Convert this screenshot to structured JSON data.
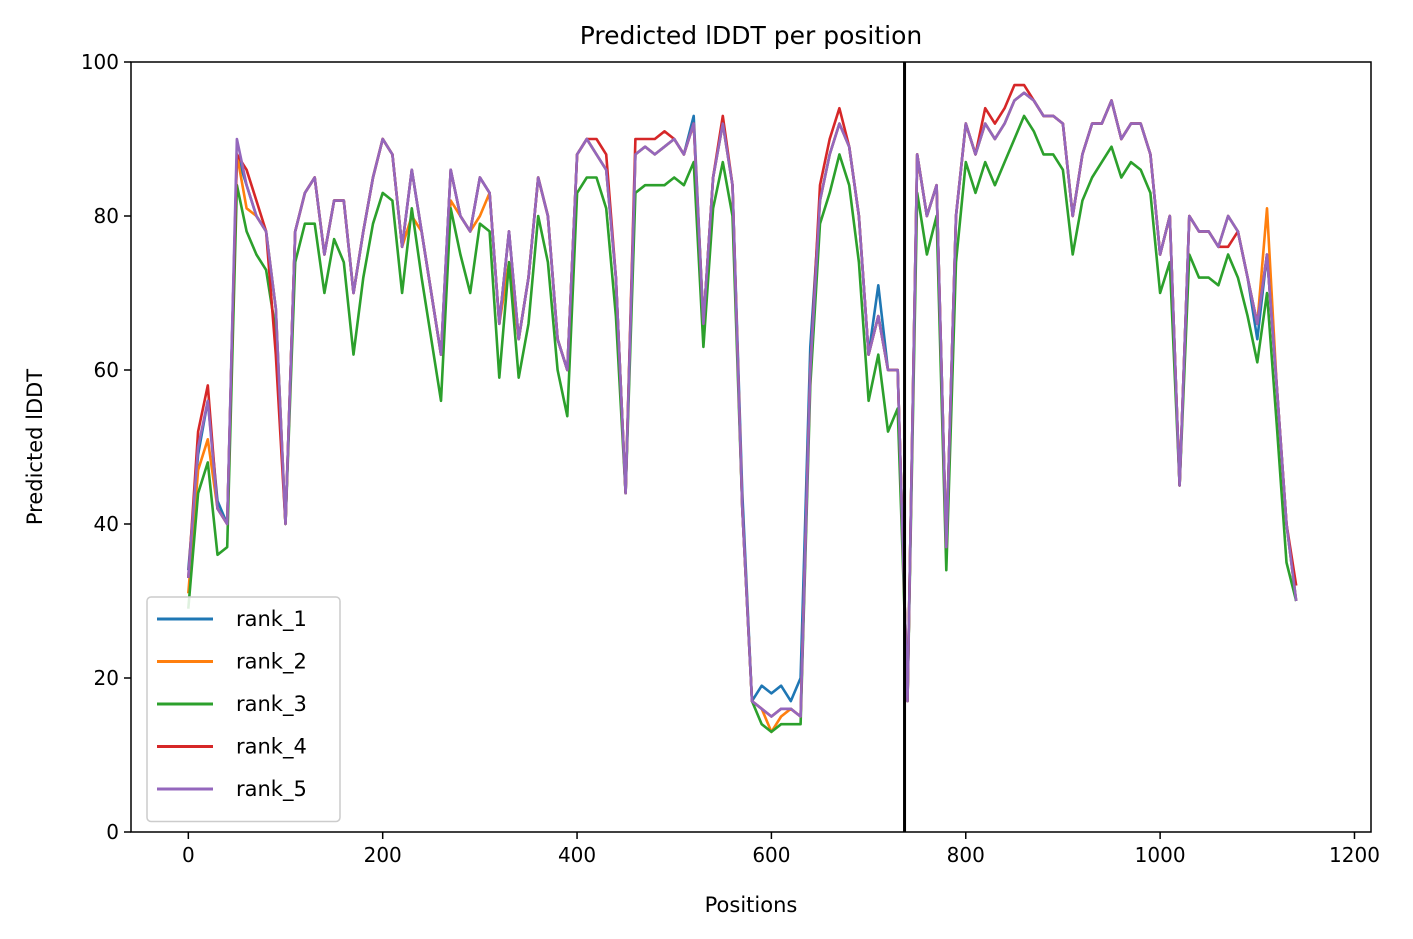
{
  "chart_data": {
    "type": "line",
    "title": "Predicted lDDT per position",
    "xlabel": "Positions",
    "ylabel": "Predicted lDDT",
    "xlim": [
      -59,
      1217
    ],
    "ylim": [
      0,
      100
    ],
    "xticks": [
      0,
      200,
      400,
      600,
      800,
      1000,
      1200
    ],
    "yticks": [
      0,
      20,
      40,
      60,
      80,
      100
    ],
    "grid": false,
    "legend_position": "lower-left",
    "vline": {
      "x": 737,
      "color": "#000000"
    },
    "x_step": 10,
    "series": [
      {
        "name": "rank_1",
        "color": "#1f77b4"
      },
      {
        "name": "rank_2",
        "color": "#ff7f0e"
      },
      {
        "name": "rank_3",
        "color": "#2ca02c"
      },
      {
        "name": "rank_4",
        "color": "#d62728"
      },
      {
        "name": "rank_5",
        "color": "#9467bd"
      }
    ],
    "base_values": [
      33,
      50,
      56,
      42,
      40,
      88,
      84,
      80,
      78,
      68,
      40,
      78,
      83,
      85,
      75,
      82,
      82,
      70,
      78,
      85,
      90,
      88,
      76,
      86,
      78,
      70,
      62,
      86,
      80,
      78,
      85,
      83,
      66,
      78,
      64,
      72,
      85,
      80,
      64,
      60,
      88,
      90,
      88,
      86,
      72,
      44,
      88,
      89,
      88,
      89,
      90,
      88,
      92,
      66,
      85,
      92,
      84,
      42,
      17,
      16,
      15,
      16,
      16,
      15,
      60,
      82,
      88,
      92,
      89,
      80,
      62,
      67,
      60,
      60,
      17,
      88,
      80,
      84,
      37,
      80,
      92,
      88,
      92,
      90,
      92,
      95,
      96,
      95,
      93,
      93,
      92,
      80,
      88,
      92,
      92,
      95,
      90,
      92,
      92,
      88,
      75,
      80,
      45,
      80,
      78,
      78,
      76,
      80,
      78,
      72,
      66,
      75,
      58,
      40,
      30
    ],
    "series_offsets": [
      [
        1,
        -1,
        0,
        1,
        0,
        0,
        0,
        0,
        0,
        0,
        0,
        0,
        0,
        0,
        0,
        0,
        0,
        0,
        0,
        0,
        0,
        0,
        0,
        0,
        0,
        0,
        0,
        0,
        0,
        0,
        0,
        0,
        0,
        0,
        0,
        0,
        0,
        0,
        0,
        0,
        0,
        0,
        0,
        0,
        0,
        0,
        0,
        0,
        0,
        0,
        0,
        0,
        1,
        0,
        0,
        0,
        0,
        2,
        0,
        3,
        3,
        3,
        1,
        5,
        3,
        0,
        0,
        0,
        0,
        0,
        0,
        4,
        0,
        0,
        0,
        0,
        0,
        0,
        0,
        0,
        0,
        0,
        0,
        0,
        0,
        0,
        0,
        0,
        0,
        0,
        0,
        0,
        0,
        0,
        0,
        0,
        0,
        0,
        0,
        0,
        0,
        0,
        0,
        0,
        0,
        0,
        0,
        0,
        0,
        0,
        -2,
        0,
        0,
        0,
        0
      ],
      [
        -2,
        -3,
        -5,
        0,
        0,
        0,
        -3,
        0,
        0,
        0,
        0,
        0,
        0,
        0,
        0,
        0,
        0,
        0,
        0,
        0,
        0,
        0,
        0,
        -6,
        0,
        0,
        0,
        -4,
        0,
        0,
        -5,
        0,
        0,
        -4,
        0,
        0,
        0,
        0,
        0,
        0,
        0,
        0,
        0,
        0,
        0,
        0,
        0,
        0,
        0,
        0,
        0,
        0,
        0,
        0,
        0,
        0,
        0,
        0,
        0,
        0,
        -2,
        -1,
        0,
        0,
        0,
        0,
        0,
        0,
        0,
        0,
        0,
        0,
        0,
        0,
        0,
        0,
        0,
        0,
        0,
        0,
        0,
        0,
        0,
        0,
        0,
        0,
        0,
        0,
        0,
        0,
        0,
        0,
        0,
        0,
        0,
        0,
        0,
        0,
        0,
        0,
        0,
        0,
        0,
        0,
        0,
        0,
        0,
        0,
        0,
        0,
        0,
        6,
        0,
        0,
        0
      ],
      [
        -4,
        -6,
        -8,
        -6,
        -3,
        -4,
        -6,
        -5,
        -5,
        -3,
        0,
        -4,
        -4,
        -6,
        -5,
        -5,
        -8,
        -8,
        -6,
        -6,
        -7,
        -6,
        -6,
        -5,
        -6,
        -6,
        -6,
        -5,
        -5,
        -8,
        -6,
        -5,
        -7,
        -4,
        -5,
        -6,
        -5,
        -6,
        -4,
        -6,
        -5,
        -5,
        -3,
        -5,
        -5,
        0,
        -5,
        -5,
        -4,
        -5,
        -5,
        -4,
        -5,
        -3,
        -4,
        -5,
        -4,
        0,
        0,
        -2,
        -2,
        -2,
        -2,
        -1,
        -2,
        -3,
        -5,
        -4,
        -5,
        -6,
        -6,
        -5,
        -8,
        -5,
        0,
        -5,
        -5,
        -4,
        -3,
        -6,
        -5,
        -5,
        -5,
        -6,
        -5,
        -5,
        -3,
        -4,
        -5,
        -5,
        -6,
        -5,
        -6,
        -7,
        -5,
        -6,
        -5,
        -5,
        -6,
        -5,
        -5,
        -6,
        0,
        -5,
        -6,
        -6,
        -5,
        -5,
        -6,
        -5,
        -5,
        -5,
        -5,
        -5,
        0
      ],
      [
        0,
        2,
        2,
        0,
        0,
        0,
        2,
        2,
        0,
        -6,
        0,
        0,
        0,
        0,
        0,
        0,
        0,
        0,
        0,
        0,
        0,
        0,
        0,
        0,
        0,
        0,
        0,
        0,
        0,
        0,
        0,
        0,
        0,
        0,
        0,
        0,
        0,
        0,
        0,
        0,
        0,
        0,
        2,
        2,
        0,
        0,
        2,
        1,
        2,
        2,
        0,
        0,
        0,
        0,
        0,
        1,
        0,
        0,
        0,
        0,
        0,
        0,
        0,
        0,
        0,
        2,
        2,
        2,
        0,
        0,
        0,
        0,
        0,
        0,
        0,
        0,
        0,
        0,
        0,
        0,
        0,
        0,
        2,
        2,
        2,
        2,
        1,
        0,
        0,
        0,
        0,
        0,
        0,
        0,
        0,
        0,
        0,
        0,
        0,
        0,
        0,
        0,
        0,
        0,
        0,
        0,
        0,
        -4,
        0,
        0,
        0,
        0,
        0,
        0,
        2
      ],
      [
        0,
        0,
        0,
        0,
        0,
        2,
        0,
        0,
        0,
        0,
        0,
        0,
        0,
        0,
        0,
        0,
        0,
        0,
        0,
        0,
        0,
        0,
        0,
        0,
        0,
        0,
        0,
        0,
        0,
        0,
        0,
        0,
        0,
        0,
        0,
        0,
        0,
        0,
        0,
        0,
        0,
        0,
        0,
        0,
        0,
        0,
        0,
        0,
        0,
        0,
        0,
        0,
        0,
        0,
        0,
        0,
        0,
        0,
        0,
        0,
        0,
        0,
        0,
        0,
        0,
        0,
        0,
        0,
        0,
        0,
        0,
        0,
        0,
        0,
        0,
        0,
        0,
        0,
        0,
        0,
        0,
        0,
        0,
        0,
        0,
        0,
        0,
        0,
        0,
        0,
        0,
        0,
        0,
        0,
        0,
        0,
        0,
        0,
        0,
        0,
        0,
        0,
        0,
        0,
        0,
        0,
        0,
        0,
        0,
        0,
        0,
        0,
        0,
        0,
        0
      ]
    ]
  }
}
